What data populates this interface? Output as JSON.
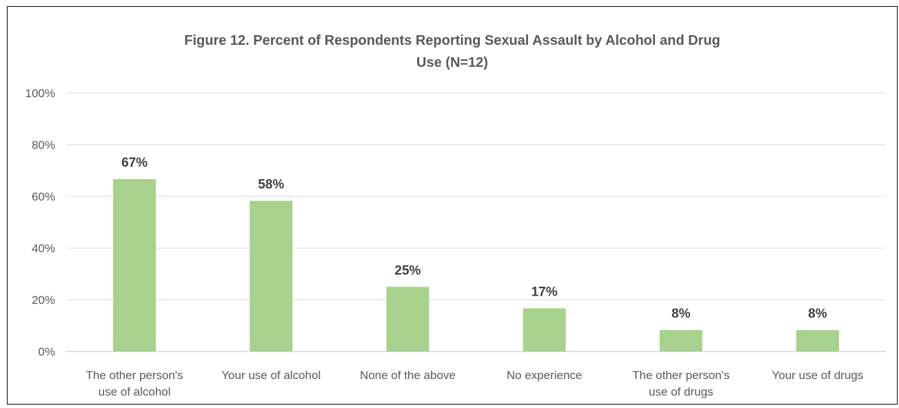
{
  "chart_data": {
    "type": "bar",
    "title_lines": [
      "Figure 12. Percent of Respondents Reporting Sexual Assault by Alcohol and Drug",
      "Use (N=12)"
    ],
    "categories": [
      [
        "The other person's",
        "use of alcohol"
      ],
      [
        "Your use of alcohol"
      ],
      [
        "None of the above"
      ],
      [
        "No experience"
      ],
      [
        "The other person's",
        "use of drugs"
      ],
      [
        "Your use of drugs"
      ]
    ],
    "values": [
      67,
      58,
      25,
      17,
      8,
      8
    ],
    "data_labels": [
      "67%",
      "58%",
      "25%",
      "17%",
      "8%",
      "8%"
    ],
    "exact_fractions": [
      0.667,
      0.583,
      0.25,
      0.167,
      0.083,
      0.083
    ],
    "ylim": [
      0,
      100
    ],
    "yticks": [
      0,
      20,
      40,
      60,
      80,
      100
    ],
    "ytick_labels": [
      "0%",
      "20%",
      "40%",
      "60%",
      "80%",
      "100%"
    ],
    "grid": true,
    "legend": "none",
    "colors": {
      "bar": "#a9d18e",
      "grid": "#d9d9d9",
      "axis": "#bfbfbf",
      "text": "#595959",
      "data_label": "#404040",
      "frame": "#000000"
    }
  }
}
